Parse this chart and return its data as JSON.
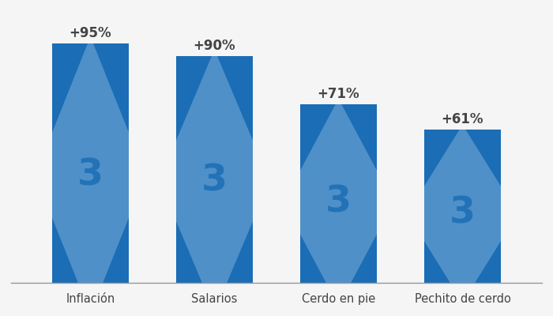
{
  "categories": [
    "Inflación",
    "Salarios",
    "Cerdo en pie",
    "Pechito de cerdo"
  ],
  "values": [
    95,
    90,
    71,
    61
  ],
  "labels": [
    "+95%",
    "+90%",
    "+71%",
    "+61%"
  ],
  "bar_color": "#1B6DB5",
  "watermark_color": "#7AADD8",
  "text_color": "#444444",
  "background_color": "#F5F5F5",
  "ylim": [
    0,
    108
  ],
  "bar_width": 0.62,
  "label_fontsize": 12,
  "tick_fontsize": 10.5,
  "figsize": [
    7.0,
    4.0
  ],
  "dpi": 100
}
